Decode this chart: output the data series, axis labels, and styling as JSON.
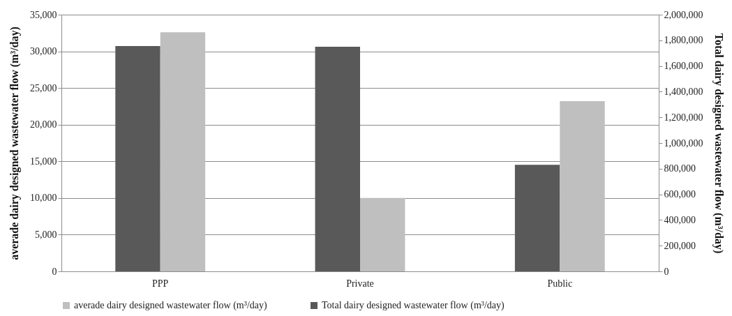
{
  "chart_data": {
    "type": "bar",
    "categories": [
      "PPP",
      "Private",
      "Public"
    ],
    "ylabel": "averade dairy designed wastewater flow (m³/day)",
    "y2label": "Total dairy designed wastewater flow (m³/day)",
    "series": [
      {
        "name": "Total dairy designed wastewater flow (m³/day)",
        "color": "#595959",
        "axis": "y2",
        "values": [
          1755000,
          1750000,
          830000
        ]
      },
      {
        "name": "averade dairy designed wastewater flow (m³/day)",
        "color": "#bfbfbf",
        "values": [
          32600,
          10000,
          23200
        ]
      }
    ],
    "ylim": [
      0,
      35000
    ],
    "yticks": [
      0,
      {
        "value": 5000,
        "label": "5,000"
      },
      {
        "value": 10000,
        "label": "10,000"
      },
      {
        "value": 15000,
        "label": "15,000"
      },
      {
        "value": 20000,
        "label": "20,000"
      },
      {
        "value": 25000,
        "label": "25,000"
      },
      {
        "value": 30000,
        "label": "30,000"
      },
      {
        "value": 35000,
        "label": "35,000"
      }
    ],
    "y2lim": [
      0,
      2000000
    ],
    "y2ticks": [
      0,
      {
        "value": 200000,
        "label": "200,000"
      },
      {
        "value": 400000,
        "label": "400,000"
      },
      {
        "value": 600000,
        "label": "600,000"
      },
      {
        "value": 800000,
        "label": "800,000"
      },
      {
        "value": 1000000,
        "label": "1,000,000"
      },
      {
        "value": 1200000,
        "label": "1,200,000"
      },
      {
        "value": 1400000,
        "label": "1,400,000"
      },
      {
        "value": 1600000,
        "label": "1,600,000"
      },
      {
        "value": 1800000,
        "label": "1,800,000"
      },
      {
        "value": 2000000,
        "label": "2,000,000"
      }
    ],
    "grid": "y",
    "legend": "bottom"
  }
}
